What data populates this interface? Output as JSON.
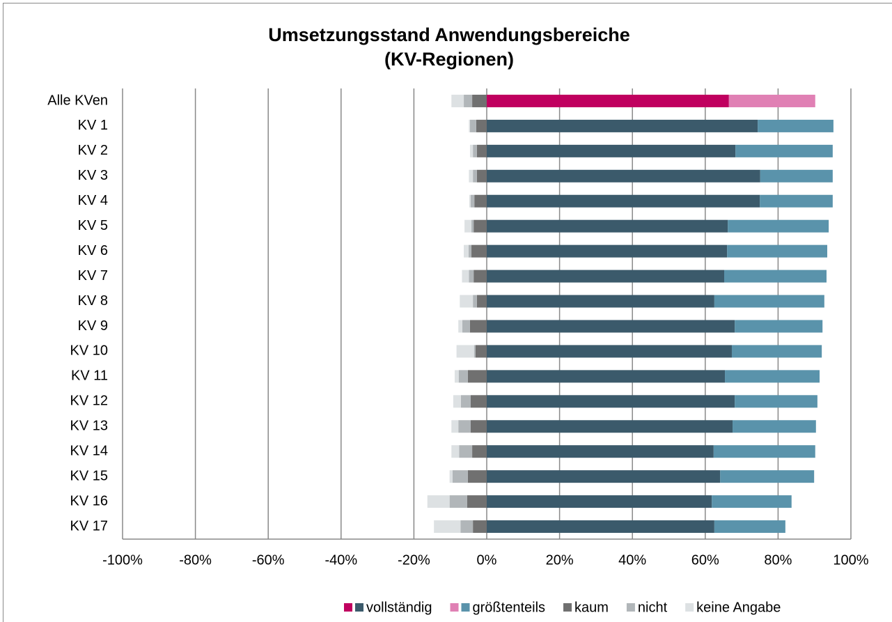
{
  "chart_data": {
    "type": "diverging_stacked_bar",
    "title": [
      "Umsetzungsstand Anwendungsbereiche",
      "(KV-Regionen)"
    ],
    "categories": [
      "Alle KVen",
      "KV 1",
      "KV 2",
      "KV 3",
      "KV 4",
      "KV 5",
      "KV 6",
      "KV 7",
      "KV 8",
      "KV 9",
      "KV 10",
      "KV 11",
      "KV 12",
      "KV 13",
      "KV 14",
      "KV 15",
      "KV 16",
      "KV 17"
    ],
    "highlight_category": "Alle KVen",
    "series": [
      {
        "name": "vollständig",
        "color": "#3b5a6b",
        "highlight_color": "#c0005f",
        "values": [
          66.5,
          74.4,
          68.3,
          75.1,
          75.0,
          66.2,
          66.0,
          65.2,
          62.5,
          68.1,
          67.3,
          65.4,
          68.1,
          67.5,
          62.3,
          64.1,
          61.8,
          62.5
        ]
      },
      {
        "name": "größtenteils",
        "color": "#5a93ab",
        "highlight_color": "#e080b4",
        "values": [
          23.7,
          20.8,
          26.7,
          19.9,
          20.0,
          27.7,
          27.5,
          28.1,
          30.2,
          24.1,
          24.7,
          26.0,
          22.7,
          22.9,
          27.9,
          25.8,
          21.9,
          19.5
        ]
      },
      {
        "name": "kaum",
        "color": "#707070",
        "values": [
          -4.0,
          -2.9,
          -2.7,
          -2.7,
          -3.4,
          -3.6,
          -4.2,
          -3.6,
          -2.7,
          -4.6,
          -3.1,
          -5.2,
          -4.4,
          -4.4,
          -4.0,
          -5.2,
          -5.4,
          -3.8
        ]
      },
      {
        "name": "nicht",
        "color": "#b1b6b9",
        "values": [
          -2.3,
          -1.7,
          -1.1,
          -1.1,
          -1.0,
          -0.6,
          -0.8,
          -1.3,
          -1.1,
          -2.1,
          -0.4,
          -2.5,
          -2.7,
          -3.4,
          -3.6,
          -4.2,
          -4.8,
          -3.4
        ]
      },
      {
        "name": "keine Angabe",
        "color": "#dde1e3",
        "values": [
          -3.4,
          -0.3,
          -0.8,
          -1.1,
          -0.4,
          -1.9,
          -1.3,
          -1.9,
          -3.6,
          -1.1,
          -4.8,
          -1.1,
          -2.1,
          -1.9,
          -2.1,
          -0.8,
          -6.1,
          -7.3
        ]
      }
    ],
    "xlim": [
      -100,
      100
    ],
    "xticks": [
      {
        "value": -100,
        "label": "-100%"
      },
      {
        "value": -80,
        "label": "-80%"
      },
      {
        "value": -60,
        "label": "-60%"
      },
      {
        "value": -40,
        "label": "-40%"
      },
      {
        "value": -20,
        "label": "-20%"
      },
      {
        "value": 0,
        "label": "0%"
      },
      {
        "value": 20,
        "label": "20%"
      },
      {
        "value": 40,
        "label": "40%"
      },
      {
        "value": 60,
        "label": "60%"
      },
      {
        "value": 80,
        "label": "80%"
      },
      {
        "value": 100,
        "label": "100%"
      }
    ],
    "grid": true,
    "legend": "bottom"
  }
}
